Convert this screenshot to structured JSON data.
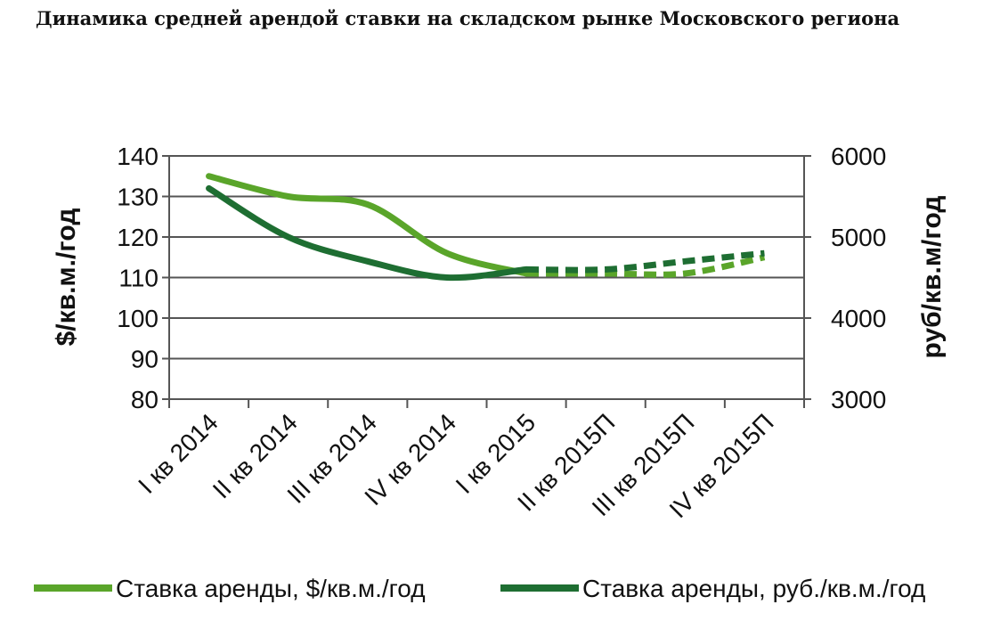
{
  "chart_data": {
    "type": "line",
    "title": "Динамика средней арендой ставки на складском рынке Московского региона",
    "categories": [
      "I кв 2014",
      "II кв 2014",
      "III кв 2014",
      "IV кв 2014",
      "I кв 2015",
      "II кв 2015П",
      "III кв 2015П",
      "IV кв 2015П"
    ],
    "y_left": {
      "label": "$/кв.м./год",
      "range": [
        80,
        140
      ],
      "ticks": [
        80,
        90,
        100,
        110,
        120,
        130,
        140
      ]
    },
    "y_right": {
      "label": "руб/кв.м/год",
      "range": [
        3000,
        6000
      ],
      "ticks": [
        3000,
        4000,
        5000,
        6000
      ]
    },
    "forecast_from_index": 4,
    "grid": true,
    "legend_position": "bottom",
    "series": [
      {
        "name": "Ставка аренды, $/кв.м./год",
        "axis": "left",
        "color": "#5aa52a",
        "values": [
          135,
          130,
          128,
          116,
          111,
          111,
          111,
          115
        ]
      },
      {
        "name": "Ставка аренды, руб./кв.м./год",
        "axis": "right",
        "color": "#1e6e32",
        "values": [
          5600,
          5000,
          4700,
          4500,
          4600,
          4600,
          4700,
          4800
        ]
      }
    ]
  }
}
